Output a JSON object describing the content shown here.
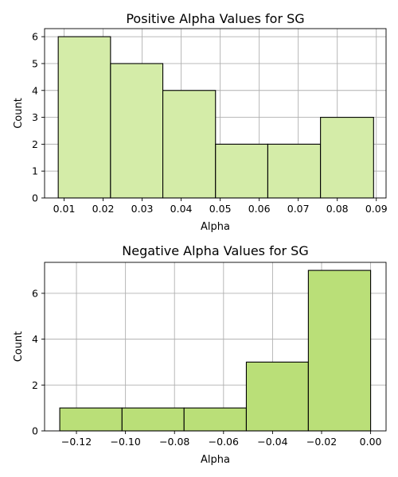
{
  "chart_data": [
    {
      "type": "bar",
      "title": "Positive Alpha Values for SG",
      "xlabel": "Alpha",
      "ylabel": "Count",
      "bin_edges": [
        0.0085,
        0.0219,
        0.0353,
        0.0488,
        0.0622,
        0.0757,
        0.0893
      ],
      "values": [
        6,
        5,
        4,
        2,
        2,
        3
      ],
      "xlim": [
        0.005,
        0.0925
      ],
      "ylim": [
        0,
        6.3
      ],
      "x_ticks": [
        0.01,
        0.02,
        0.03,
        0.04,
        0.05,
        0.06,
        0.07,
        0.08,
        0.09
      ],
      "x_tick_labels": [
        "0.01",
        "0.02",
        "0.03",
        "0.04",
        "0.05",
        "0.06",
        "0.07",
        "0.08",
        "0.09"
      ],
      "y_ticks": [
        0,
        1,
        2,
        3,
        4,
        5,
        6
      ],
      "y_tick_labels": [
        "0",
        "1",
        "2",
        "3",
        "4",
        "5",
        "6"
      ],
      "bar_color": "#d4eca8",
      "grid": true
    },
    {
      "type": "bar",
      "title": "Negative Alpha Values for SG",
      "xlabel": "Alpha",
      "ylabel": "Count",
      "bin_edges": [
        -0.1268,
        -0.1014,
        -0.0761,
        -0.0507,
        -0.0254,
        0.0
      ],
      "values": [
        1,
        1,
        1,
        3,
        7
      ],
      "xlim": [
        -0.133,
        0.0063
      ],
      "ylim": [
        0,
        7.35
      ],
      "x_ticks": [
        -0.12,
        -0.1,
        -0.08,
        -0.06,
        -0.04,
        -0.02,
        0.0
      ],
      "x_tick_labels": [
        "−0.12",
        "−0.10",
        "−0.08",
        "−0.06",
        "−0.04",
        "−0.02",
        "0.00"
      ],
      "y_ticks": [
        0,
        2,
        4,
        6
      ],
      "y_tick_labels": [
        "0",
        "2",
        "4",
        "6"
      ],
      "bar_color": "#badf78",
      "grid": true
    }
  ]
}
